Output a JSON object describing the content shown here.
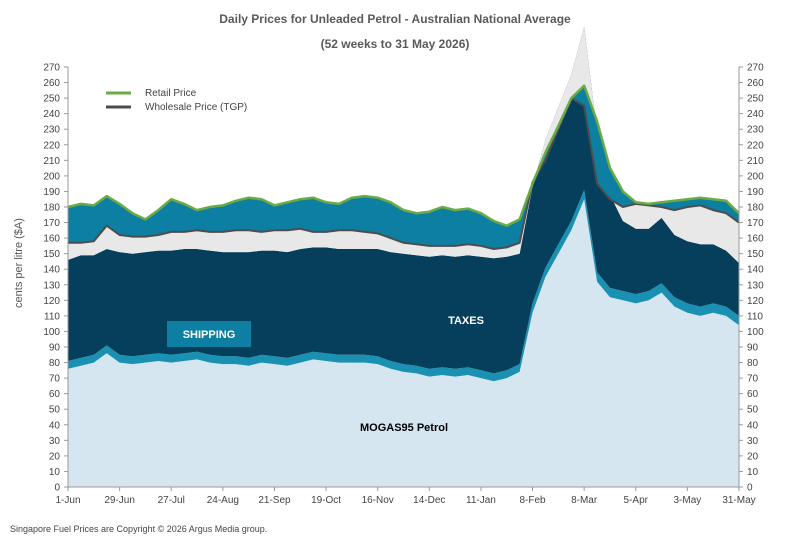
{
  "chart_data": {
    "type": "area",
    "title": "Daily  Prices for Unleaded  Petrol  - Australian  National  Average",
    "subtitle": "(52 weeks to 31 May 2026)",
    "ylabel": "cents per litre ($A)",
    "ylim": [
      0,
      270
    ],
    "yticks": [
      0,
      10,
      20,
      30,
      40,
      50,
      60,
      70,
      80,
      90,
      100,
      110,
      120,
      130,
      140,
      150,
      160,
      170,
      180,
      190,
      200,
      210,
      220,
      230,
      240,
      250,
      260,
      270
    ],
    "xticks": [
      "1-Jun",
      "29-Jun",
      "27-Jul",
      "24-Aug",
      "21-Sep",
      "19-Oct",
      "16-Nov",
      "14-Dec",
      "11-Jan",
      "8-Feb",
      "8-Mar",
      "5-Apr",
      "3-May",
      "31-May"
    ],
    "xlim_days": [
      0,
      364
    ],
    "grid": false,
    "legend_placement": "top-left",
    "legend": [
      {
        "label": "Retail Price",
        "color": "#6aab45"
      },
      {
        "label": "Wholesale Price (TGP)",
        "color": "#4d4d4d"
      }
    ],
    "annotations": {
      "shipping": "SHIPPING",
      "taxes": "TAXES",
      "mogas": "MOGAS95 Petrol"
    },
    "colors": {
      "mogas": "#d6e6f0",
      "band": "#1a91b2",
      "taxes": "#063f5c",
      "margin": "#e8e8e8",
      "retail_band": "#0d7fa3",
      "retail_line": "#6aab45",
      "wholesale_line": "#4d4d4d",
      "axis": "#9a9a9a"
    },
    "x_days": [
      0,
      7,
      14,
      21,
      28,
      35,
      42,
      49,
      56,
      63,
      70,
      77,
      84,
      91,
      98,
      105,
      112,
      119,
      126,
      133,
      140,
      147,
      154,
      161,
      168,
      175,
      182,
      189,
      196,
      203,
      210,
      217,
      224,
      231,
      238,
      245,
      252,
      259,
      266,
      273,
      280,
      287,
      294,
      301,
      308,
      315,
      322,
      329,
      336,
      343,
      350,
      357,
      364
    ],
    "series": [
      {
        "name": "MOGAS95 Petrol",
        "values": [
          76,
          78,
          80,
          86,
          80,
          79,
          80,
          81,
          80,
          81,
          82,
          80,
          79,
          79,
          78,
          80,
          79,
          78,
          80,
          82,
          81,
          80,
          80,
          80,
          79,
          76,
          74,
          73,
          71,
          72,
          71,
          72,
          70,
          68,
          70,
          74,
          112,
          135,
          150,
          165,
          185,
          132,
          122,
          120,
          118,
          120,
          125,
          116,
          112,
          110,
          112,
          110,
          104
        ]
      },
      {
        "name": "Shipping",
        "values": [
          5,
          5,
          5,
          5,
          5,
          5,
          5,
          5,
          5,
          5,
          5,
          5,
          5,
          5,
          5,
          5,
          5,
          5,
          5,
          5,
          5,
          5,
          5,
          5,
          5,
          5,
          5,
          5,
          5,
          5,
          5,
          5,
          5,
          5,
          5,
          5,
          6,
          6,
          6,
          6,
          6,
          6,
          6,
          6,
          6,
          6,
          6,
          6,
          6,
          6,
          6,
          6,
          6
        ]
      },
      {
        "name": "Taxes",
        "values": [
          65,
          66,
          64,
          62,
          66,
          66,
          66,
          66,
          67,
          67,
          66,
          67,
          67,
          67,
          68,
          67,
          68,
          68,
          68,
          67,
          68,
          68,
          68,
          68,
          69,
          70,
          71,
          71,
          72,
          72,
          72,
          72,
          73,
          74,
          73,
          71,
          75,
          82,
          88,
          94,
          105,
          90,
          60,
          45,
          42,
          40,
          42,
          40,
          40,
          40,
          38,
          36,
          34
        ]
      },
      {
        "name": "Wholesale Price (TGP)",
        "values": [
          157,
          157,
          158,
          168,
          162,
          161,
          161,
          162,
          164,
          164,
          165,
          164,
          164,
          165,
          165,
          164,
          165,
          165,
          166,
          164,
          164,
          165,
          165,
          164,
          163,
          160,
          157,
          156,
          155,
          155,
          155,
          156,
          155,
          153,
          154,
          157,
          196,
          210,
          230,
          250,
          245,
          195,
          185,
          180,
          182,
          181,
          180,
          178,
          180,
          181,
          178,
          176,
          170
        ]
      },
      {
        "name": "Retail Price",
        "values": [
          180,
          182,
          181,
          187,
          182,
          176,
          172,
          178,
          185,
          182,
          178,
          180,
          181,
          184,
          186,
          185,
          181,
          183,
          185,
          186,
          183,
          182,
          186,
          187,
          186,
          183,
          178,
          176,
          177,
          180,
          178,
          179,
          176,
          171,
          168,
          172,
          195,
          215,
          232,
          250,
          258,
          235,
          205,
          190,
          183,
          182,
          183,
          184,
          185,
          186,
          185,
          184,
          176
        ]
      }
    ]
  },
  "footer": "Singapore  Fuel Prices are  Copyright © 2026 Argus Media  group."
}
